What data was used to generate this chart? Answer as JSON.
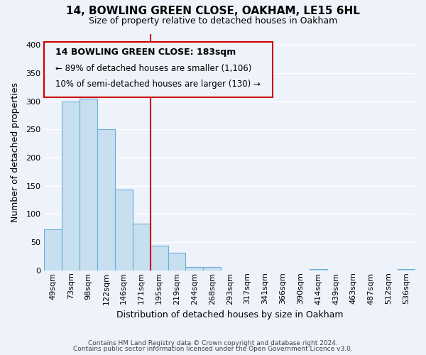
{
  "title": "14, BOWLING GREEN CLOSE, OAKHAM, LE15 6HL",
  "subtitle": "Size of property relative to detached houses in Oakham",
  "xlabel": "Distribution of detached houses by size in Oakham",
  "ylabel": "Number of detached properties",
  "bin_labels": [
    "49sqm",
    "73sqm",
    "98sqm",
    "122sqm",
    "146sqm",
    "171sqm",
    "195sqm",
    "219sqm",
    "244sqm",
    "268sqm",
    "293sqm",
    "317sqm",
    "341sqm",
    "366sqm",
    "390sqm",
    "414sqm",
    "439sqm",
    "463sqm",
    "487sqm",
    "512sqm",
    "536sqm"
  ],
  "bar_heights": [
    73,
    300,
    305,
    250,
    144,
    83,
    44,
    31,
    6,
    6,
    0,
    0,
    0,
    0,
    0,
    2,
    0,
    0,
    0,
    0,
    2
  ],
  "bar_color": "#c8dff0",
  "bar_edge_color": "#6aaed6",
  "ylim": [
    0,
    420
  ],
  "yticks": [
    0,
    50,
    100,
    150,
    200,
    250,
    300,
    350,
    400
  ],
  "property_line_x": 6.0,
  "annotation_title": "14 BOWLING GREEN CLOSE: 183sqm",
  "annotation_line1": "← 89% of detached houses are smaller (1,106)",
  "annotation_line2": "10% of semi-detached houses are larger (130) →",
  "annotation_box_edge_color": "#cc0000",
  "property_line_color": "#cc0000",
  "footer1": "Contains HM Land Registry data © Crown copyright and database right 2024.",
  "footer2": "Contains public sector information licensed under the Open Government Licence v3.0.",
  "background_color": "#eef2fb",
  "grid_color": "#ffffff",
  "title_fontsize": 11,
  "subtitle_fontsize": 9,
  "axis_label_fontsize": 9,
  "tick_fontsize": 8,
  "annotation_title_fontsize": 9,
  "annotation_text_fontsize": 8.5
}
